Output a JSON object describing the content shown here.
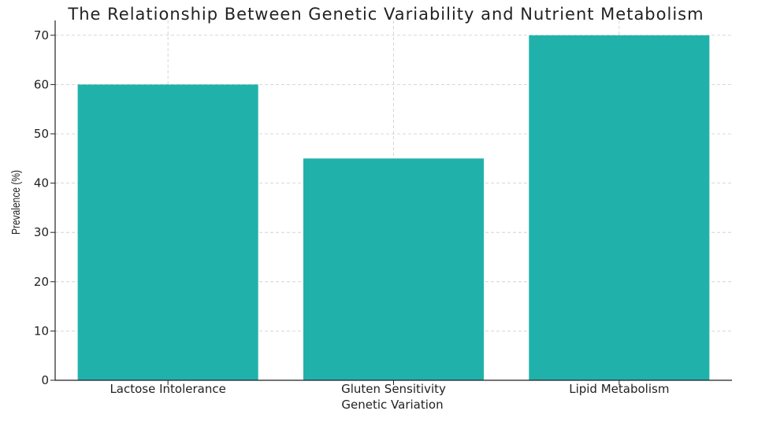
{
  "chart_data": {
    "type": "bar",
    "title": "The Relationship Between Genetic Variability and Nutrient Metabolism",
    "xlabel": "Genetic Variation",
    "ylabel": "Prevalence (%)",
    "categories": [
      "Lactose Intolerance",
      "Gluten Sensitivity",
      "Lipid Metabolism"
    ],
    "values": [
      60,
      45,
      70
    ],
    "ylim": [
      0,
      73
    ],
    "yticks": [
      0,
      10,
      20,
      30,
      40,
      50,
      60,
      70
    ],
    "grid": true,
    "bar_color": "#20b2aa",
    "grid_color": "#cccccc",
    "axis_color": "#222222"
  }
}
